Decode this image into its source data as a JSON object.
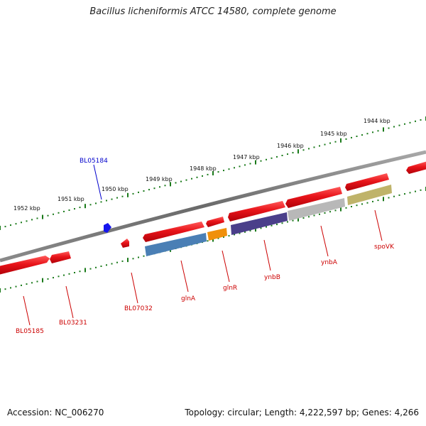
{
  "title": "Bacillus licheniformis ATCC 14580, complete genome",
  "footer": {
    "accession": "Accession: NC_006270",
    "summary": "Topology: circular; Length: 4,222,597 bp; Genes: 4,266"
  },
  "colors": {
    "backbone": "#777777",
    "tick": "#1a7a1a",
    "red_gene": "#e8141a",
    "blue_label": "#0000cc",
    "red_label": "#cc0000"
  },
  "kbp_labels": [
    "1944 kbp",
    "1945 kbp",
    "1946 kbp",
    "1947 kbp",
    "1948 kbp",
    "1949 kbp",
    "1950 kbp",
    "1951 kbp",
    "1952 kbp"
  ],
  "gene_labels": [
    {
      "text": "BL05184",
      "color": "blue"
    },
    {
      "text": "BL05185",
      "color": "red"
    },
    {
      "text": "BL03231",
      "color": "red"
    },
    {
      "text": "BL07032",
      "color": "red"
    },
    {
      "text": "glnA",
      "color": "red"
    },
    {
      "text": "glnR",
      "color": "red"
    },
    {
      "text": "ynbB",
      "color": "red"
    },
    {
      "text": "ynbA",
      "color": "red"
    },
    {
      "text": "spoVK",
      "color": "red"
    }
  ],
  "features": {
    "cds_colors": [
      "#4a7fb5",
      "#f0900a",
      "#4a3f8a",
      "#b8b8b8",
      "#bfb36a"
    ]
  }
}
